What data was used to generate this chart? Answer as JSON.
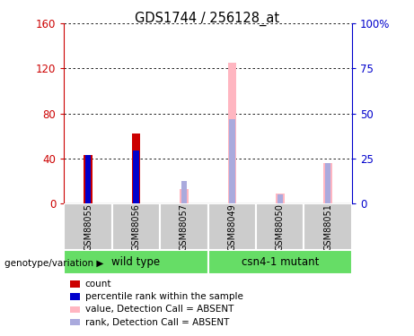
{
  "title": "GDS1744 / 256128_at",
  "samples": [
    "GSM88055",
    "GSM88056",
    "GSM88057",
    "GSM88049",
    "GSM88050",
    "GSM88051"
  ],
  "dark_red_values": [
    43,
    62,
    0,
    0,
    0,
    0
  ],
  "dark_blue_values": [
    43,
    47,
    0,
    0,
    0,
    0
  ],
  "light_pink_values": [
    0,
    0,
    13,
    125,
    9,
    36
  ],
  "light_blue_values": [
    0,
    0,
    20,
    75,
    8,
    36
  ],
  "dark_red_color": "#CC0000",
  "dark_blue_color": "#0000CC",
  "light_pink_color": "#FFB6C1",
  "light_blue_color": "#AAAADD",
  "ylim_left": [
    0,
    160
  ],
  "ylim_right": [
    0,
    100
  ],
  "yticks_left": [
    0,
    40,
    80,
    120,
    160
  ],
  "yticks_right": [
    0,
    25,
    50,
    75,
    100
  ],
  "ytick_labels_right": [
    "0",
    "25",
    "50",
    "75",
    "100%"
  ],
  "ylabel_left_color": "#CC0000",
  "ylabel_right_color": "#0000CC",
  "legend_items": [
    {
      "label": "count",
      "color": "#CC0000"
    },
    {
      "label": "percentile rank within the sample",
      "color": "#0000CC"
    },
    {
      "label": "value, Detection Call = ABSENT",
      "color": "#FFB6C1"
    },
    {
      "label": "rank, Detection Call = ABSENT",
      "color": "#AAAADD"
    }
  ],
  "plot_bg": "#FFFFFF",
  "sample_bg": "#CCCCCC",
  "group_color": "#66DD66",
  "wt_label": "wild type",
  "mut_label": "csn4-1 mutant",
  "genotype_label": "genotype/variation"
}
